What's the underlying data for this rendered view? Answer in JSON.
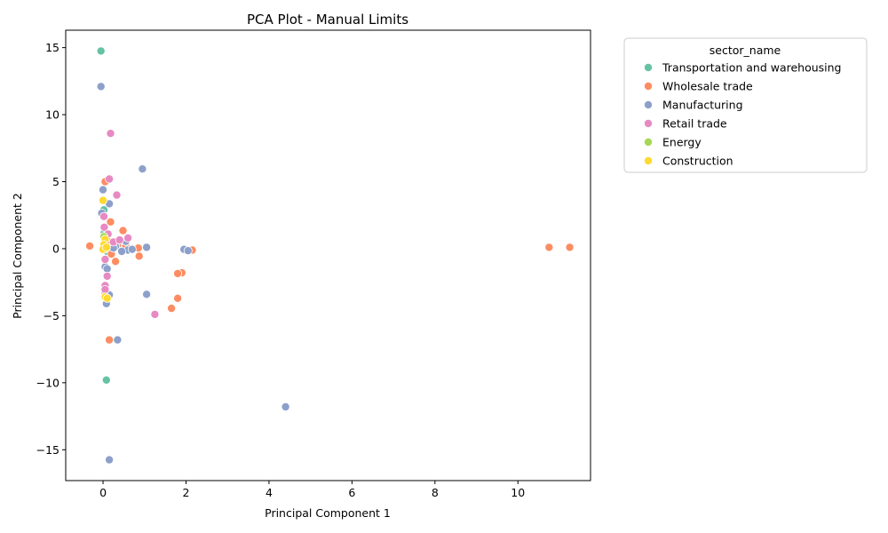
{
  "chart_data": {
    "type": "scatter",
    "title": "PCA Plot - Manual Limits",
    "xlabel": "Principal Component 1",
    "ylabel": "Principal Component 2",
    "xlim": [
      -0.9,
      11.75
    ],
    "ylim": [
      -17.3,
      16.3
    ],
    "xticks": [
      0,
      2,
      4,
      6,
      8,
      10
    ],
    "yticks": [
      -15,
      -10,
      -5,
      0,
      5,
      10,
      15
    ],
    "xtick_labels": [
      "0",
      "2",
      "4",
      "6",
      "8",
      "10"
    ],
    "ytick_labels": [
      "−15",
      "−10",
      "−5",
      "0",
      "5",
      "10",
      "15"
    ],
    "grid": false,
    "legend": {
      "title": "sector_name",
      "placement": "outside-top-right",
      "entries": [
        {
          "name": "Transportation and warehousing",
          "color": "#66c2a5"
        },
        {
          "name": "Wholesale trade",
          "color": "#fc8d62"
        },
        {
          "name": "Manufacturing",
          "color": "#8da0cb"
        },
        {
          "name": "Retail trade",
          "color": "#e78ac3"
        },
        {
          "name": "Energy",
          "color": "#a6d854"
        },
        {
          "name": "Construction",
          "color": "#ffd92f"
        }
      ]
    },
    "series": [
      {
        "name": "Transportation and warehousing",
        "color": "#66c2a5",
        "points": [
          [
            -0.05,
            14.75
          ],
          [
            0.08,
            -9.8
          ],
          [
            0.02,
            2.9
          ],
          [
            0.05,
            0.3
          ],
          [
            0.1,
            -0.2
          ],
          [
            0.03,
            1.2
          ]
        ]
      },
      {
        "name": "Wholesale trade",
        "color": "#fc8d62",
        "points": [
          [
            -0.32,
            0.2
          ],
          [
            0.05,
            5.0
          ],
          [
            0.18,
            2.0
          ],
          [
            0.48,
            1.35
          ],
          [
            0.85,
            0.05
          ],
          [
            0.87,
            -0.55
          ],
          [
            0.3,
            -0.95
          ],
          [
            1.9,
            -1.8
          ],
          [
            1.8,
            -1.85
          ],
          [
            1.8,
            -3.7
          ],
          [
            1.65,
            -4.45
          ],
          [
            2.15,
            -0.1
          ],
          [
            0.15,
            -6.8
          ],
          [
            10.75,
            0.1
          ],
          [
            11.25,
            0.1
          ],
          [
            0.1,
            0.6
          ],
          [
            0.35,
            0.3
          ],
          [
            0.05,
            -3.3
          ],
          [
            0.2,
            -0.4
          ],
          [
            0.55,
            0.2
          ]
        ]
      },
      {
        "name": "Manufacturing",
        "color": "#8da0cb",
        "points": [
          [
            -0.05,
            12.1
          ],
          [
            0.95,
            5.95
          ],
          [
            0.0,
            4.4
          ],
          [
            0.15,
            3.35
          ],
          [
            -0.03,
            2.65
          ],
          [
            0.55,
            0.55
          ],
          [
            0.6,
            -0.1
          ],
          [
            1.05,
            0.1
          ],
          [
            1.95,
            -0.05
          ],
          [
            2.05,
            -0.15
          ],
          [
            1.05,
            -3.4
          ],
          [
            0.15,
            -3.45
          ],
          [
            0.08,
            -4.1
          ],
          [
            0.35,
            -6.8
          ],
          [
            4.4,
            -11.8
          ],
          [
            0.15,
            -15.75
          ],
          [
            0.05,
            -1.35
          ],
          [
            0.1,
            -1.5
          ],
          [
            0.3,
            0.15
          ],
          [
            0.45,
            -0.2
          ],
          [
            0.7,
            -0.05
          ],
          [
            0.25,
            0.05
          ]
        ]
      },
      {
        "name": "Retail trade",
        "color": "#e78ac3",
        "points": [
          [
            0.18,
            8.6
          ],
          [
            0.15,
            5.2
          ],
          [
            0.33,
            4.0
          ],
          [
            0.02,
            2.4
          ],
          [
            0.03,
            1.6
          ],
          [
            0.6,
            0.8
          ],
          [
            0.05,
            -0.8
          ],
          [
            0.1,
            -2.05
          ],
          [
            0.05,
            -2.75
          ],
          [
            0.05,
            -3.05
          ],
          [
            1.25,
            -4.9
          ],
          [
            0.25,
            0.5
          ],
          [
            0.12,
            1.1
          ],
          [
            0.4,
            0.65
          ]
        ]
      },
      {
        "name": "Energy",
        "color": "#a6d854",
        "points": [
          [
            0.05,
            0.0
          ],
          [
            0.02,
            0.9
          ]
        ]
      },
      {
        "name": "Construction",
        "color": "#ffd92f",
        "points": [
          [
            0.0,
            3.6
          ],
          [
            0.05,
            0.7
          ],
          [
            0.02,
            0.3
          ],
          [
            0.0,
            -0.05
          ],
          [
            0.05,
            -3.6
          ],
          [
            0.1,
            -3.7
          ],
          [
            0.08,
            0.1
          ]
        ]
      }
    ]
  }
}
